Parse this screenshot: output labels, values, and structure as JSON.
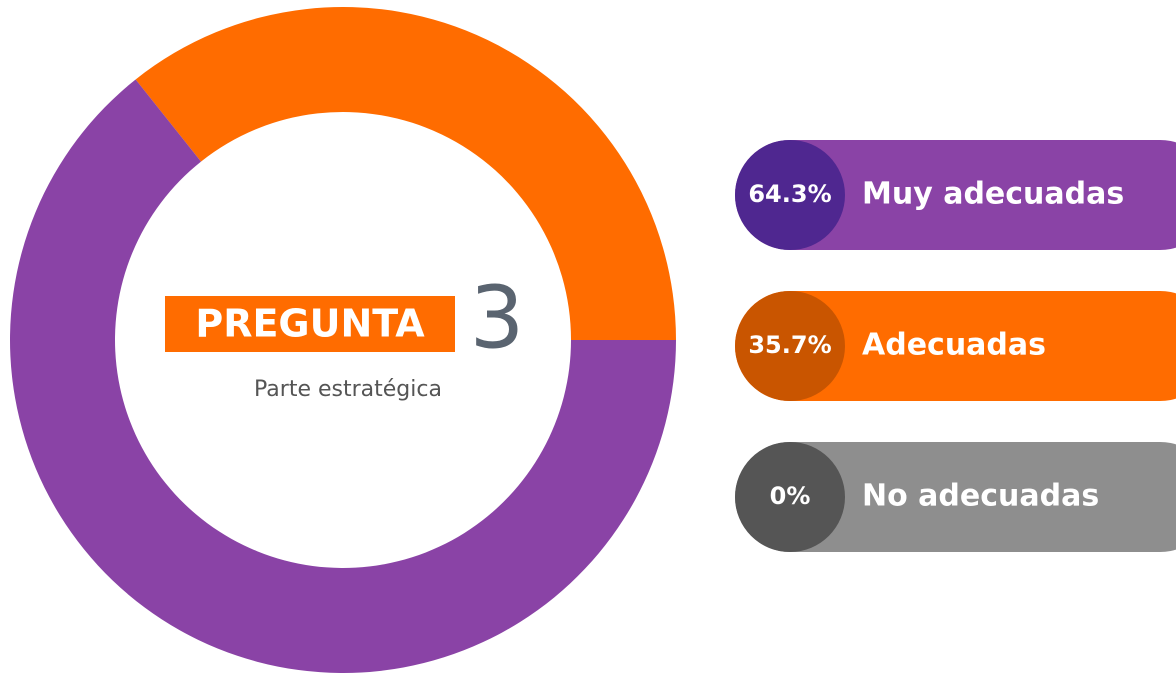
{
  "chart_data": {
    "type": "pie",
    "donut": true,
    "title": "PREGUNTA",
    "title_number": "3",
    "subtitle": "Parte estratégica",
    "categories": [
      "Muy adecuadas",
      "Adecuadas",
      "No adecuadas"
    ],
    "values": [
      64.3,
      35.7,
      0
    ],
    "value_labels": [
      "64.3%",
      "35.7%",
      "0%"
    ],
    "colors": [
      "#8a43a6",
      "#ff6c00",
      "#8e8e8e"
    ],
    "accent_colors": [
      "#4f2790",
      "#c95500",
      "#555555"
    ]
  }
}
